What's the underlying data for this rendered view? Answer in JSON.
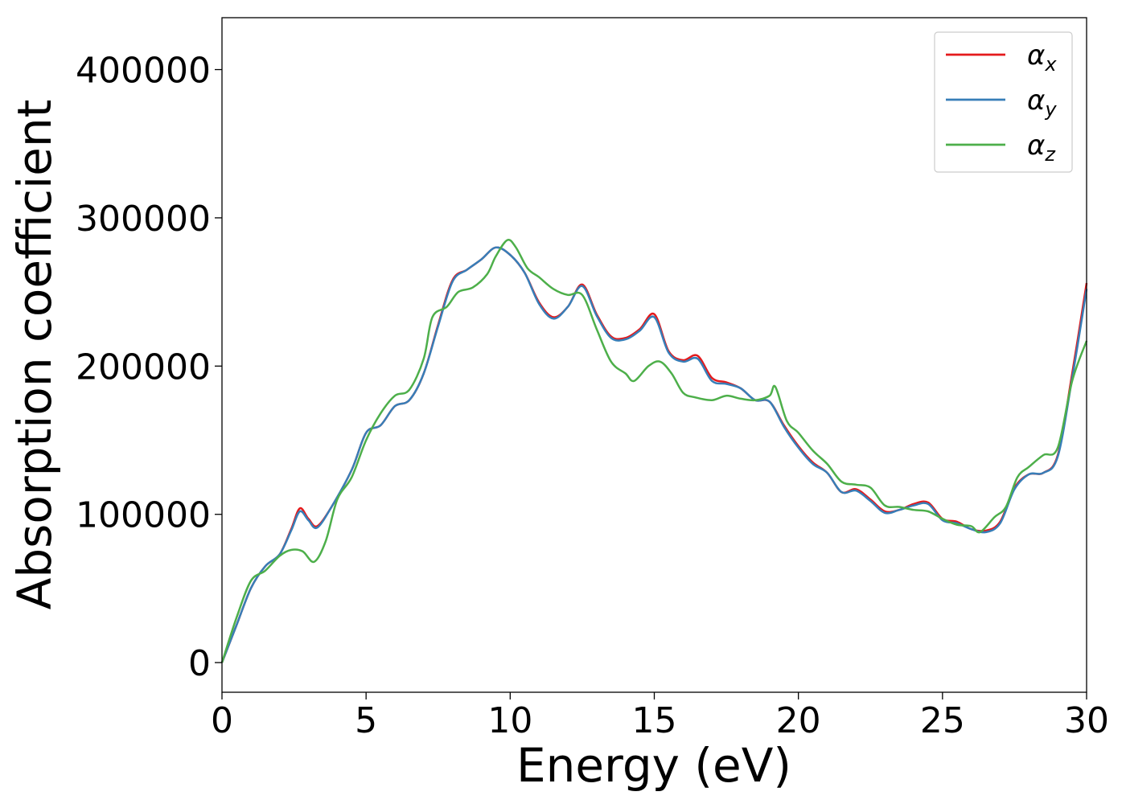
{
  "chart_data": {
    "type": "line",
    "title": "",
    "xlabel": "Energy (eV)",
    "ylabel": "Absorption coefficient",
    "xlim": [
      0,
      30
    ],
    "ylim": [
      -20000,
      435000
    ],
    "xticks": [
      0,
      5,
      10,
      15,
      20,
      25,
      30
    ],
    "xtick_labels": [
      "0",
      "5",
      "10",
      "15",
      "20",
      "25",
      "30"
    ],
    "yticks": [
      0,
      100000,
      200000,
      300000,
      400000
    ],
    "ytick_labels": [
      "0",
      "100000",
      "200000",
      "300000",
      "400000"
    ],
    "grid": false,
    "legend_position": "top-right",
    "series": [
      {
        "name": "αx",
        "symbol": "α",
        "subscript": "x",
        "color": "#e41a1c",
        "points": [
          [
            0,
            0
          ],
          [
            0.5,
            25000
          ],
          [
            1,
            50000
          ],
          [
            1.5,
            65000
          ],
          [
            2,
            73000
          ],
          [
            2.4,
            90000
          ],
          [
            2.7,
            104000
          ],
          [
            3,
            97000
          ],
          [
            3.3,
            92000
          ],
          [
            3.8,
            105000
          ],
          [
            4.5,
            130000
          ],
          [
            5,
            155000
          ],
          [
            5.5,
            160000
          ],
          [
            6,
            173000
          ],
          [
            6.5,
            177000
          ],
          [
            7,
            195000
          ],
          [
            7.5,
            228000
          ],
          [
            8,
            258000
          ],
          [
            8.5,
            265000
          ],
          [
            9,
            272000
          ],
          [
            9.5,
            280000
          ],
          [
            10,
            275000
          ],
          [
            10.5,
            263000
          ],
          [
            11,
            243000
          ],
          [
            11.5,
            233000
          ],
          [
            12,
            240000
          ],
          [
            12.5,
            255000
          ],
          [
            13,
            235000
          ],
          [
            13.5,
            220000
          ],
          [
            14,
            219000
          ],
          [
            14.5,
            225000
          ],
          [
            15,
            235000
          ],
          [
            15.5,
            210000
          ],
          [
            16,
            204000
          ],
          [
            16.5,
            207000
          ],
          [
            17,
            192000
          ],
          [
            17.5,
            189000
          ],
          [
            18,
            185000
          ],
          [
            18.5,
            177000
          ],
          [
            19,
            176000
          ],
          [
            19.5,
            160000
          ],
          [
            20,
            146000
          ],
          [
            20.5,
            135000
          ],
          [
            21,
            128000
          ],
          [
            21.5,
            115000
          ],
          [
            22,
            117000
          ],
          [
            22.5,
            110000
          ],
          [
            23,
            102000
          ],
          [
            23.5,
            103000
          ],
          [
            24,
            107000
          ],
          [
            24.5,
            108000
          ],
          [
            25,
            97000
          ],
          [
            25.5,
            95000
          ],
          [
            26,
            90000
          ],
          [
            26.5,
            89000
          ],
          [
            27,
            95000
          ],
          [
            27.5,
            118000
          ],
          [
            28,
            127000
          ],
          [
            28.5,
            128000
          ],
          [
            29,
            140000
          ],
          [
            29.5,
            195000
          ],
          [
            30,
            256000
          ]
        ]
      },
      {
        "name": "αy",
        "symbol": "α",
        "subscript": "y",
        "color": "#377eb8",
        "points": [
          [
            0,
            0
          ],
          [
            0.5,
            25000
          ],
          [
            1,
            50000
          ],
          [
            1.5,
            65000
          ],
          [
            2,
            73000
          ],
          [
            2.4,
            89000
          ],
          [
            2.7,
            102000
          ],
          [
            3,
            96000
          ],
          [
            3.3,
            91000
          ],
          [
            3.8,
            105000
          ],
          [
            4.5,
            130000
          ],
          [
            5,
            155000
          ],
          [
            5.5,
            160000
          ],
          [
            6,
            173000
          ],
          [
            6.5,
            177000
          ],
          [
            7,
            195000
          ],
          [
            7.5,
            227000
          ],
          [
            8,
            257000
          ],
          [
            8.5,
            265000
          ],
          [
            9,
            272000
          ],
          [
            9.5,
            280000
          ],
          [
            10,
            275000
          ],
          [
            10.5,
            263000
          ],
          [
            11,
            242000
          ],
          [
            11.5,
            232000
          ],
          [
            12,
            240000
          ],
          [
            12.5,
            254000
          ],
          [
            13,
            234000
          ],
          [
            13.5,
            219000
          ],
          [
            14,
            218000
          ],
          [
            14.5,
            224000
          ],
          [
            15,
            233000
          ],
          [
            15.5,
            209000
          ],
          [
            16,
            203000
          ],
          [
            16.5,
            205000
          ],
          [
            17,
            190000
          ],
          [
            17.5,
            188000
          ],
          [
            18,
            185000
          ],
          [
            18.5,
            177000
          ],
          [
            19,
            176000
          ],
          [
            19.5,
            159000
          ],
          [
            20,
            145000
          ],
          [
            20.5,
            134000
          ],
          [
            21,
            128000
          ],
          [
            21.5,
            115000
          ],
          [
            22,
            116000
          ],
          [
            22.5,
            109000
          ],
          [
            23,
            101000
          ],
          [
            23.5,
            103000
          ],
          [
            24,
            106000
          ],
          [
            24.5,
            107000
          ],
          [
            25,
            96000
          ],
          [
            25.5,
            94000
          ],
          [
            26,
            90000
          ],
          [
            26.5,
            88000
          ],
          [
            27,
            94000
          ],
          [
            27.5,
            117000
          ],
          [
            28,
            127000
          ],
          [
            28.5,
            128000
          ],
          [
            29,
            139000
          ],
          [
            29.5,
            192000
          ],
          [
            30,
            252000
          ]
        ]
      },
      {
        "name": "αz",
        "symbol": "α",
        "subscript": "z",
        "color": "#4daf4a",
        "points": [
          [
            0,
            0
          ],
          [
            0.5,
            30000
          ],
          [
            1,
            55000
          ],
          [
            1.5,
            62000
          ],
          [
            2,
            72000
          ],
          [
            2.4,
            76000
          ],
          [
            2.8,
            75000
          ],
          [
            3.2,
            68000
          ],
          [
            3.6,
            82000
          ],
          [
            4,
            110000
          ],
          [
            4.5,
            125000
          ],
          [
            5,
            150000
          ],
          [
            5.5,
            168000
          ],
          [
            6,
            180000
          ],
          [
            6.5,
            184000
          ],
          [
            7,
            205000
          ],
          [
            7.3,
            233000
          ],
          [
            7.8,
            240000
          ],
          [
            8.2,
            250000
          ],
          [
            8.7,
            253000
          ],
          [
            9.2,
            262000
          ],
          [
            9.5,
            274000
          ],
          [
            9.9,
            285000
          ],
          [
            10.2,
            280000
          ],
          [
            10.6,
            266000
          ],
          [
            11,
            260000
          ],
          [
            11.5,
            252000
          ],
          [
            12,
            248000
          ],
          [
            12.5,
            248000
          ],
          [
            13,
            225000
          ],
          [
            13.5,
            203000
          ],
          [
            14,
            195000
          ],
          [
            14.3,
            190000
          ],
          [
            14.8,
            200000
          ],
          [
            15.2,
            203000
          ],
          [
            15.6,
            195000
          ],
          [
            16,
            182000
          ],
          [
            16.4,
            179000
          ],
          [
            17,
            177000
          ],
          [
            17.5,
            180000
          ],
          [
            18,
            178000
          ],
          [
            18.5,
            177000
          ],
          [
            19,
            180000
          ],
          [
            19.2,
            186000
          ],
          [
            19.6,
            163000
          ],
          [
            20,
            155000
          ],
          [
            20.5,
            143000
          ],
          [
            21,
            134000
          ],
          [
            21.5,
            122000
          ],
          [
            22,
            120000
          ],
          [
            22.5,
            118000
          ],
          [
            23,
            106000
          ],
          [
            23.5,
            105000
          ],
          [
            24,
            103000
          ],
          [
            24.5,
            102000
          ],
          [
            25,
            97000
          ],
          [
            25.5,
            93000
          ],
          [
            26,
            92000
          ],
          [
            26.3,
            88000
          ],
          [
            26.8,
            98000
          ],
          [
            27.2,
            105000
          ],
          [
            27.6,
            125000
          ],
          [
            28,
            132000
          ],
          [
            28.5,
            140000
          ],
          [
            29,
            145000
          ],
          [
            29.5,
            190000
          ],
          [
            30,
            217000
          ]
        ]
      }
    ]
  }
}
